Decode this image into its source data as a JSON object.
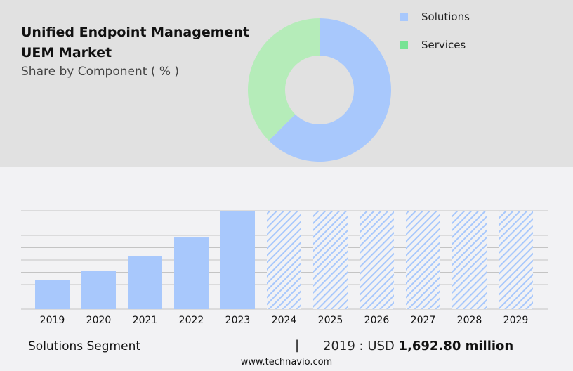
{
  "title_line1": "Unified Endpoint Management",
  "title_line2": "UEM Market",
  "subtitle": "Share by Component ( % )",
  "colors": {
    "solutions": "#a8c8fc",
    "services": "#b5ecb9",
    "services_legend": "#76e394",
    "grid": "#c4c4c4"
  },
  "chart_data": [
    {
      "type": "pie",
      "style": "donut",
      "labels": [
        "Solutions",
        "Services"
      ],
      "values": [
        62.5,
        37.5
      ],
      "legend": "right"
    },
    {
      "type": "bar",
      "categories": [
        "2019",
        "2020",
        "2021",
        "2022",
        "2023",
        "2024",
        "2025",
        "2026",
        "2027",
        "2028",
        "2029"
      ],
      "values": [
        1692.8,
        2270,
        3100,
        4210,
        5780,
        null,
        null,
        null,
        null,
        null,
        null
      ],
      "forecast_categories": [
        "2024",
        "2025",
        "2026",
        "2027",
        "2028",
        "2029"
      ],
      "forecast_style": "hatched",
      "ylim": [
        0,
        5780
      ],
      "grid": true,
      "y_tick_labels_shown": false
    }
  ],
  "footer": {
    "segment": "Solutions Segment",
    "separator": "|",
    "year_label": "2019 : USD",
    "value": "1,692.80 million",
    "site": "www.technavio.com"
  }
}
